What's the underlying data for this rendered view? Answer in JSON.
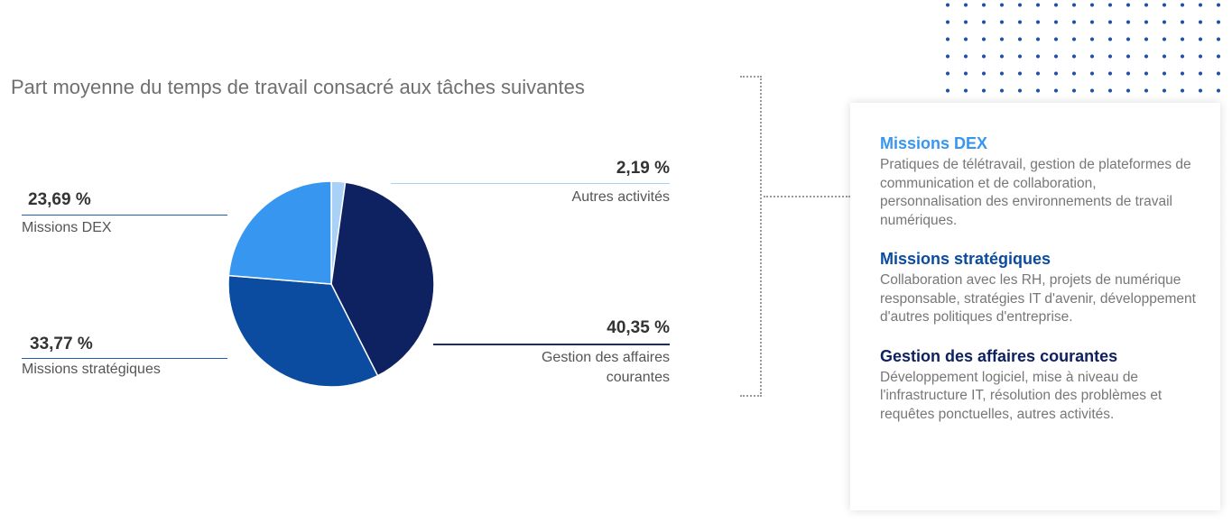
{
  "chart_data": {
    "type": "pie",
    "title": "Part moyenne du temps de travail consacré aux tâches suivantes",
    "slices": [
      {
        "label": "Autres activités",
        "value": 2.19,
        "display": "2,19 %",
        "color": "#a9d0f5"
      },
      {
        "label": "Gestion des affaires courantes",
        "label_lines": [
          "Gestion des affaires",
          "courantes"
        ],
        "value": 40.35,
        "display": "40,35 %",
        "color": "#0e2160"
      },
      {
        "label": "Missions stratégiques",
        "value": 33.77,
        "display": "33,77 %",
        "color": "#0b4ba0"
      },
      {
        "label": "Missions DEX",
        "value": 23.69,
        "display": "23,69 %",
        "color": "#3796ef"
      }
    ]
  },
  "colors": {
    "title": "#6f6f6f",
    "leader_light": "#a9d0f5",
    "leader_dark": "#1a2c6b",
    "leader_blue": "#1f5fb4",
    "dot_pattern": "#1f4fa8"
  },
  "info_card": {
    "sections": [
      {
        "heading": "Missions DEX",
        "color": "#3796ef",
        "description": "Pratiques de télétravail, gestion de plateformes de communication et de collaboration, personnalisation des environnements de travail numériques."
      },
      {
        "heading": "Missions stratégiques",
        "color": "#0b4ba0",
        "description": "Collaboration avec les RH, projets de numérique responsable, stratégies IT d'avenir, développement d'autres politiques d'entreprise."
      },
      {
        "heading": "Gestion des affaires courantes",
        "color": "#0e2160",
        "description": "Développement logiciel, mise à niveau de l'infrastructure IT, résolution des problèmes et requêtes ponctuelles, autres activités."
      }
    ]
  }
}
